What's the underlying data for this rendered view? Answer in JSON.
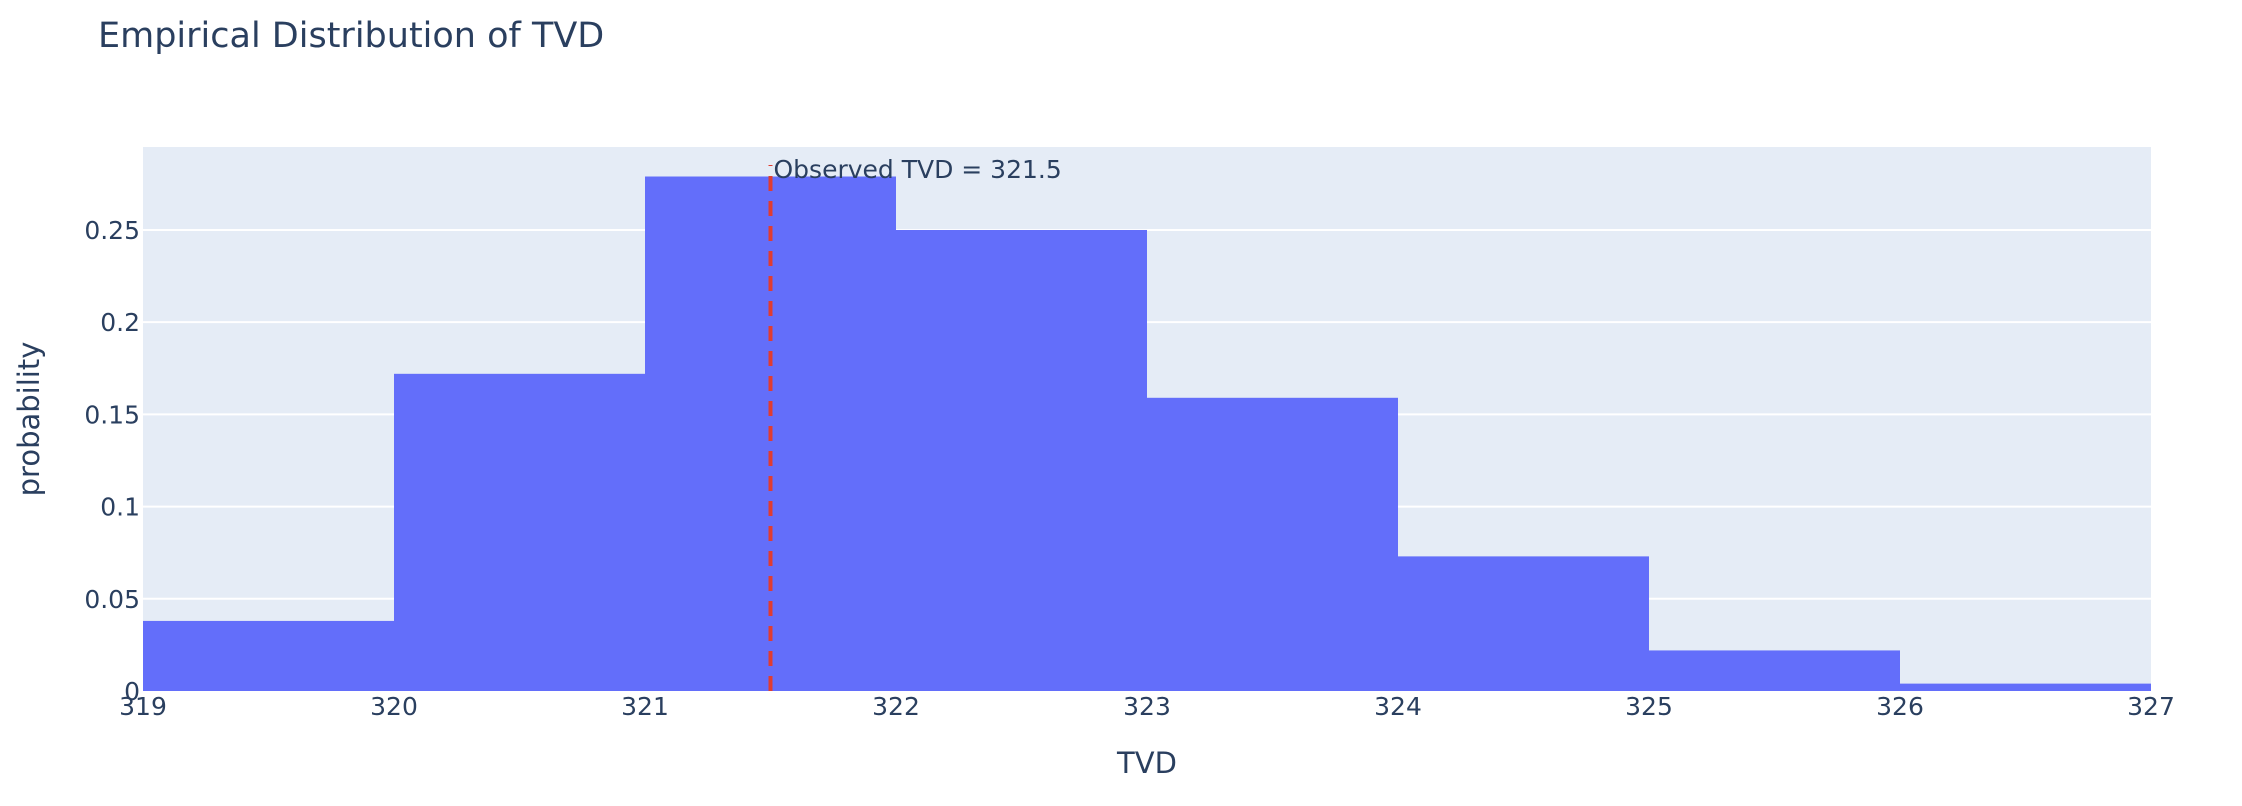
{
  "chart_data": {
    "type": "bar",
    "title": "Empirical Distribution of TVD",
    "xlabel": "TVD",
    "ylabel": "probability",
    "bins": [
      {
        "x0": 319,
        "x1": 320,
        "value": 0.038
      },
      {
        "x0": 320,
        "x1": 321,
        "value": 0.172
      },
      {
        "x0": 321,
        "x1": 322,
        "value": 0.279
      },
      {
        "x0": 322,
        "x1": 323,
        "value": 0.25
      },
      {
        "x0": 323,
        "x1": 324,
        "value": 0.159
      },
      {
        "x0": 324,
        "x1": 325,
        "value": 0.073
      },
      {
        "x0": 325,
        "x1": 326,
        "value": 0.022
      },
      {
        "x0": 326,
        "x1": 327,
        "value": 0.004
      }
    ],
    "xlim": [
      319,
      327
    ],
    "ylim": [
      0,
      0.295
    ],
    "xticks": [
      319,
      320,
      321,
      322,
      323,
      324,
      325,
      326,
      327
    ],
    "xtick_labels": [
      "319",
      "320",
      "321",
      "322",
      "323",
      "324",
      "325",
      "326",
      "327"
    ],
    "yticks": [
      0,
      0.05,
      0.1,
      0.15,
      0.2,
      0.25
    ],
    "ytick_labels": [
      "0",
      "0.05",
      "0.1",
      "0.15",
      "0.2",
      "0.25"
    ],
    "grid": true,
    "bar_color": "#636efa",
    "plot_background": "#e5ecf6",
    "vline": {
      "x": 321.5,
      "color": "#e03c31",
      "style": "dashed",
      "label": "Observed TVD = 321.5"
    }
  }
}
